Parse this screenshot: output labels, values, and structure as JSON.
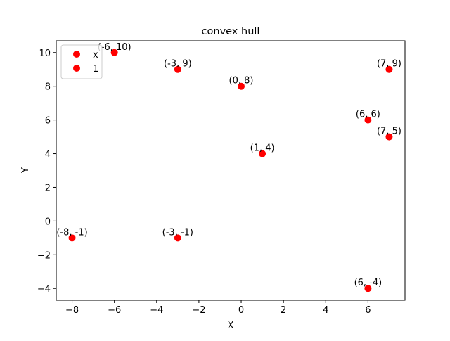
{
  "chart_data": {
    "type": "scatter",
    "title": "convex hull",
    "xlabel": "X",
    "ylabel": "Y",
    "xlim": [
      -8.75,
      7.75
    ],
    "ylim": [
      -4.7,
      10.7
    ],
    "xticks": [
      -8,
      -6,
      -4,
      -2,
      0,
      2,
      4,
      6
    ],
    "xtick_labels": [
      "−8",
      "−6",
      "−4",
      "−2",
      "0",
      "2",
      "4",
      "6"
    ],
    "yticks": [
      -4,
      -2,
      0,
      2,
      4,
      6,
      8,
      10
    ],
    "ytick_labels": [
      "−4",
      "−2",
      "0",
      "2",
      "4",
      "6",
      "8",
      "10"
    ],
    "grid": false,
    "legend": {
      "placement": "top-left",
      "entries": [
        {
          "label": "x",
          "color": "#ff0000",
          "marker": "circle"
        },
        {
          "label": "1",
          "color": "#ff0000",
          "marker": "circle"
        }
      ]
    },
    "marker_color": "#ff0000",
    "points": [
      {
        "x": -6,
        "y": 10,
        "label": "(-6, 10)"
      },
      {
        "x": -3,
        "y": 9,
        "label": "(-3, 9)"
      },
      {
        "x": 0,
        "y": 8,
        "label": "(0, 8)"
      },
      {
        "x": 7,
        "y": 9,
        "label": "(7, 9)"
      },
      {
        "x": 6,
        "y": 6,
        "label": "(6, 6)"
      },
      {
        "x": 7,
        "y": 5,
        "label": "(7, 5)"
      },
      {
        "x": 1,
        "y": 4,
        "label": "(1, 4)"
      },
      {
        "x": -8,
        "y": -1,
        "label": "(-8, -1)"
      },
      {
        "x": -3,
        "y": -1,
        "label": "(-3, -1)"
      },
      {
        "x": 6,
        "y": -4,
        "label": "(6, -4)"
      }
    ]
  }
}
